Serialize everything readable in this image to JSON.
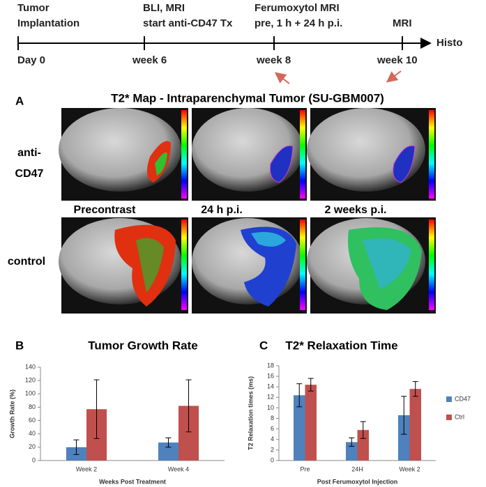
{
  "timeline": {
    "events": [
      {
        "label_lines": [
          "Tumor",
          "Implantation"
        ],
        "time": "Day 0"
      },
      {
        "label_lines": [
          "BLI, MRI",
          "start anti-CD47 Tx"
        ],
        "time": "week 6"
      },
      {
        "label_lines": [
          "Ferumoxytol MRI",
          "pre, 1 h + 24 h p.i."
        ],
        "time": "week 8"
      },
      {
        "label_lines": [
          "MRI"
        ],
        "time": "week 10"
      }
    ],
    "end": "Histo"
  },
  "panel_a": {
    "letter": "A",
    "title": "T2* Map - Intraparenchymal Tumor (SU-GBM007)",
    "rows": [
      [
        "anti-",
        "CD47"
      ],
      [
        "control"
      ]
    ],
    "columns": [
      "Precontrast",
      "24 h p.i.",
      "2 weeks p.i."
    ]
  },
  "chart_data": [
    {
      "type": "bar",
      "panel": "B",
      "title": "Tumor Growth Rate",
      "xlabel": "Weeks Post Treatment",
      "ylabel": "Growth Rate (%)",
      "categories": [
        "Week 2",
        "Week 4"
      ],
      "series": [
        {
          "color": "#4f81bd",
          "values": [
            20,
            27
          ],
          "errors": [
            11,
            7
          ]
        },
        {
          "color": "#c0504d",
          "values": [
            77,
            82
          ],
          "errors": [
            44,
            39
          ]
        }
      ],
      "ylim": [
        0,
        140
      ],
      "yticks": [
        0,
        20,
        40,
        60,
        80,
        100,
        120,
        140
      ]
    },
    {
      "type": "bar",
      "panel": "C",
      "title": "T2* Relaxation Time",
      "xlabel": "Post Ferumoxytol Injection",
      "ylabel": "T2 Relaxation times (ms)",
      "categories": [
        "Pre",
        "24H",
        "Week 2"
      ],
      "series": [
        {
          "name": "CD47",
          "color": "#4f81bd",
          "values": [
            12.4,
            3.5,
            8.6
          ],
          "errors": [
            2.2,
            0.8,
            3.6
          ]
        },
        {
          "name": "Ctrl",
          "color": "#c0504d",
          "values": [
            14.4,
            5.8,
            13.6
          ],
          "errors": [
            1.2,
            1.6,
            1.4
          ]
        }
      ],
      "ylim": [
        0,
        18
      ],
      "yticks": [
        0,
        2,
        4,
        6,
        8,
        10,
        12,
        14,
        16,
        18
      ],
      "legend": "right"
    }
  ]
}
